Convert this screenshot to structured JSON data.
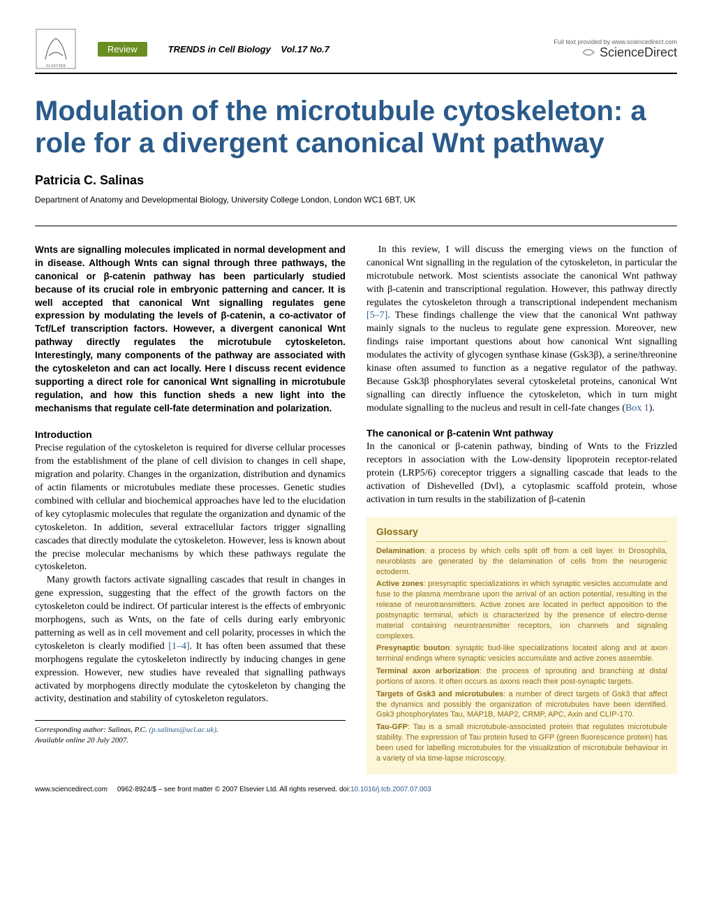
{
  "header": {
    "review_label": "Review",
    "journal": "TRENDS in Cell Biology",
    "volume": "Vol.17 No.7",
    "sd_small": "Full text provided by www.sciencedirect.com",
    "sd_name": "ScienceDirect"
  },
  "title": "Modulation of the microtubule cytoskeleton: a role for a divergent canonical Wnt pathway",
  "author": "Patricia C. Salinas",
  "affiliation": "Department of Anatomy and Developmental Biology, University College London, London WC1 6BT, UK",
  "abstract": "Wnts are signalling molecules implicated in normal development and in disease. Although Wnts can signal through three pathways, the canonical or β-catenin pathway has been particularly studied because of its crucial role in embryonic patterning and cancer. It is well accepted that canonical Wnt signalling regulates gene expression by modulating the levels of β-catenin, a co-activator of Tcf/Lef transcription factors. However, a divergent canonical Wnt pathway directly regulates the microtubule cytoskeleton. Interestingly, many components of the pathway are associated with the cytoskeleton and can act locally. Here I discuss recent evidence supporting a direct role for canonical Wnt signalling in microtubule regulation, and how this function sheds a new light into the mechanisms that regulate cell-fate determination and polarization.",
  "intro_heading": "Introduction",
  "intro_p1": "Precise regulation of the cytoskeleton is required for diverse cellular processes from the establishment of the plane of cell division to changes in cell shape, migration and polarity. Changes in the organization, distribution and dynamics of actin filaments or microtubules mediate these processes. Genetic studies combined with cellular and biochemical approaches have led to the elucidation of key cytoplasmic molecules that regulate the organization and dynamic of the cytoskeleton. In addition, several extracellular factors trigger signalling cascades that directly modulate the cytoskeleton. However, less is known about the precise molecular mechanisms by which these pathways regulate the cytoskeleton.",
  "intro_p2_a": "Many growth factors activate signalling cascades that result in changes in gene expression, suggesting that the effect of the growth factors on the cytoskeleton could be indirect. Of particular interest is the effects of embryonic morphogens, such as Wnts, on the fate of cells during early embryonic patterning as well as in cell movement and cell polarity, processes in which the cytoskeleton is clearly modified ",
  "intro_ref1": "[1–4]",
  "intro_p2_b": ". It has often been assumed that these morphogens regulate the cytoskeleton indirectly by inducing changes in gene expression. However, new studies have revealed that signalling pathways activated by morphogens directly modulate the cytoskeleton by changing the activity, destination and stability of cytoskeleton regulators.",
  "col2_p1_a": "In this review, I will discuss the emerging views on the function of canonical Wnt signalling in the regulation of the cytoskeleton, in particular the microtubule network. Most scientists associate the canonical Wnt pathway with β-catenin and transcriptional regulation. However, this pathway directly regulates the cytoskeleton through a transcriptional independent mechanism ",
  "col2_ref1": "[5–7]",
  "col2_p1_b": ". These findings challenge the view that the canonical Wnt pathway mainly signals to the nucleus to regulate gene expression. Moreover, new findings raise important questions about how canonical Wnt signalling modulates the activity of glycogen synthase kinase (Gsk3β), a serine/threonine kinase often assumed to function as a negative regulator of the pathway. Because Gsk3β phosphorylates several cytoskeletal proteins, canonical Wnt signalling can directly influence the cytoskeleton, which in turn might modulate signalling to the nucleus and result in cell-fate changes (",
  "col2_box": "Box 1",
  "col2_p1_c": ").",
  "canonical_heading": "The canonical or β-catenin Wnt pathway",
  "canonical_p1": "In the canonical or β-catenin pathway, binding of Wnts to the Frizzled receptors in association with the Low-density lipoprotein receptor-related protein (LRP5/6) coreceptor triggers a signalling cascade that leads to the activation of Dishevelled (Dvl), a cytoplasmic scaffold protein, whose activation in turn results in the stabilization of β-catenin",
  "glossary": {
    "title": "Glossary",
    "background": "#fef6d8",
    "text_color": "#8a6d1a",
    "entries": [
      {
        "term": "Delamination",
        "def": ": a process by which cells split off from a cell layer. In Drosophila, neuroblasts are generated by the delamination of cells from the neurogenic ectoderm."
      },
      {
        "term": "Active zones",
        "def": ": presynaptic specializations in which synaptic vesicles accumulate and fuse to the plasma membrane upon the arrival of an action potential, resulting in the release of neurotransmitters. Active zones are located in perfect apposition to the postsynaptic terminal, which is characterized by the presence of electro-dense material containing neurotransmitter receptors, ion channels and signaling complexes."
      },
      {
        "term": "Presynaptic bouton",
        "def": ": synaptic bud-like specializations located along and at axon terminal endings where synaptic vesicles accumulate and active zones assemble."
      },
      {
        "term": "Terminal axon arborization",
        "def": ": the process of sprouting and branching at distal portions of axons. It often occurs as axons reach their post-synaptic targets."
      },
      {
        "term": "Targets of Gsk3 and microtubules",
        "def": ": a number of direct targets of Gsk3 that affect the dynamics and possibly the organization of microtubules have been identified. Gsk3 phosphorylates Tau, MAP1B, MAP2, CRMP, APC, Axin and CLIP-170."
      },
      {
        "term": "Tau-GFP",
        "def": ": Tau is a small microtubule-associated protein that regulates microtubule stability. The expression of Tau protein fused to GFP (green fluorescence protein) has been used for labelling microtubules for the visualization of microtubule behaviour in a variety of via time-lapse microscopy."
      }
    ]
  },
  "corresponding": {
    "label": "Corresponding author:",
    "name": "Salinas, P.C.",
    "email": "(p.salinas@ucl.ac.uk)",
    "online": "Available online 20 July 2007."
  },
  "footer": {
    "url": "www.sciencedirect.com",
    "issn": "0962-8924/$ – see front matter © 2007 Elsevier Ltd. All rights reserved.",
    "doi_label": "doi:",
    "doi": "10.1016/j.tcb.2007.07.003"
  },
  "colors": {
    "title_color": "#2a5a8a",
    "review_bg": "#6b8e23",
    "glossary_bg": "#fef6d8",
    "glossary_text": "#8a6d1a",
    "link_color": "#2a5a8a"
  }
}
